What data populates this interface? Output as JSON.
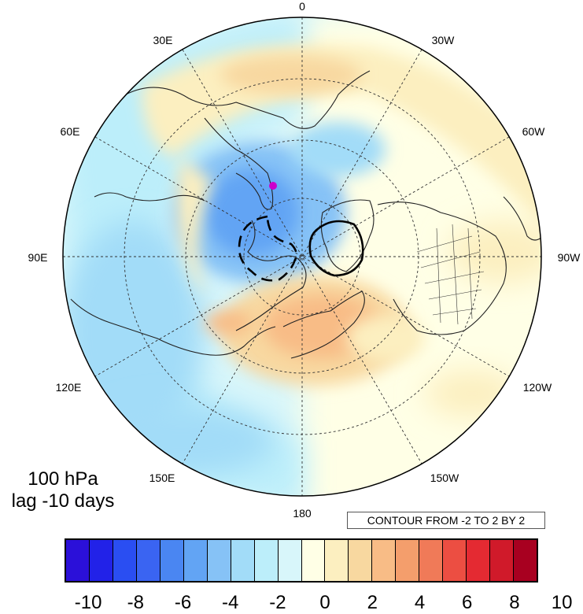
{
  "map": {
    "projection": "north-polar-stereographic",
    "lon_labels": [
      "0",
      "30W",
      "60W",
      "90W",
      "120W",
      "150W",
      "180",
      "150E",
      "120E",
      "90E",
      "60E",
      "30E"
    ],
    "marker_color": "#cc00cc"
  },
  "title": {
    "line1": "100 hPa",
    "line2": "lag -10 days"
  },
  "contour_info": "CONTOUR FROM -2 TO 2 BY 2",
  "colorbar": {
    "colors": [
      "#2b10d9",
      "#2222e8",
      "#2a4ef2",
      "#3a64f2",
      "#4a86f2",
      "#62a4f4",
      "#86c2f6",
      "#a2dcf8",
      "#bceefa",
      "#d8f6fa",
      "#ffffe6",
      "#fcefc0",
      "#f8d8a0",
      "#f8bc86",
      "#f49e6c",
      "#f07a58",
      "#ec4e42",
      "#e42a32",
      "#d01a2a",
      "#a80020"
    ],
    "labels": [
      "-10",
      "-8",
      "-6",
      "-4",
      "-2",
      "0",
      "2",
      "4",
      "6",
      "8",
      "10"
    ]
  }
}
